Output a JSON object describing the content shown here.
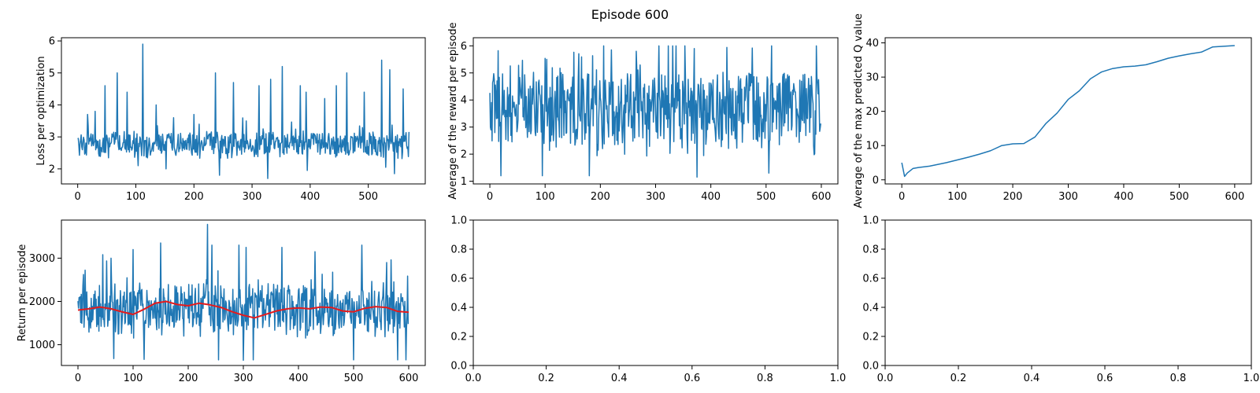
{
  "figure": {
    "title": "Episode 600"
  },
  "colors": {
    "series": "#1f77b4",
    "moving_average": "#e41a1c",
    "axes": "#000000",
    "background": "#ffffff"
  },
  "chart_data": [
    {
      "id": "loss",
      "type": "line",
      "title": "",
      "xlabel": "",
      "ylabel": "Loss per optimization",
      "xlim": [
        -28,
        598
      ],
      "ylim": [
        1.53,
        6.1
      ],
      "xticks": [
        0,
        100,
        200,
        300,
        400,
        500
      ],
      "yticks": [
        2,
        3,
        4,
        5,
        6
      ],
      "grid": false,
      "series": [
        {
          "x_range": [
            0,
            570
          ],
          "color": "#1f77b4",
          "generated": {
            "n": 571,
            "base": 2.75,
            "noise": 0.35,
            "spikes": [
              [
                17,
                3.7
              ],
              [
                30,
                3.8
              ],
              [
                47,
                4.6
              ],
              [
                68,
                5.0
              ],
              [
                85,
                4.4
              ],
              [
                112,
                5.9
              ],
              [
                135,
                4.0
              ],
              [
                165,
                3.6
              ],
              [
                200,
                3.7
              ],
              [
                237,
                5.0
              ],
              [
                268,
                4.7
              ],
              [
                290,
                3.5
              ],
              [
                312,
                4.6
              ],
              [
                332,
                4.8
              ],
              [
                352,
                5.2
              ],
              [
                383,
                4.6
              ],
              [
                393,
                4.4
              ],
              [
                425,
                4.2
              ],
              [
                445,
                4.6
              ],
              [
                463,
                5.0
              ],
              [
                493,
                4.4
              ],
              [
                523,
                5.4
              ],
              [
                537,
                5.1
              ],
              [
                560,
                4.5
              ]
            ],
            "lows": [
              [
                104,
                2.1
              ],
              [
                152,
                2.0
              ],
              [
                244,
                1.8
              ],
              [
                327,
                1.7
              ],
              [
                395,
                1.95
              ],
              [
                530,
                2.05
              ],
              [
                545,
                1.85
              ]
            ],
            "min": 1.7,
            "max": 5.9
          }
        }
      ]
    },
    {
      "id": "avg-reward",
      "type": "line",
      "title": "",
      "xlabel": "",
      "ylabel": "Average of the reward per episode",
      "xlim": [
        -30,
        630
      ],
      "ylim": [
        0.9,
        6.3
      ],
      "xticks": [
        0,
        100,
        200,
        300,
        400,
        500,
        600
      ],
      "yticks": [
        1,
        2,
        3,
        4,
        5,
        6
      ],
      "grid": false,
      "series": [
        {
          "x_range": [
            0,
            599
          ],
          "color": "#1f77b4",
          "generated": {
            "n": 600,
            "base": 3.6,
            "noise": 1.35,
            "spikes": [
              [
                220,
                5.85
              ],
              [
                265,
                5.8
              ],
              [
                370,
                5.9
              ],
              [
                510,
                6.0
              ]
            ],
            "lows": [
              [
                20,
                1.2
              ],
              [
                95,
                1.2
              ],
              [
                180,
                1.2
              ],
              [
                375,
                1.15
              ],
              [
                505,
                1.3
              ]
            ],
            "min": 1.15,
            "max": 6.0
          }
        }
      ]
    },
    {
      "id": "max-q",
      "type": "line",
      "title": "",
      "xlabel": "",
      "ylabel": "Average of the max predicted Q value",
      "xlim": [
        -30,
        630
      ],
      "ylim": [
        -1.2,
        41.5
      ],
      "xticks": [
        0,
        100,
        200,
        300,
        400,
        500,
        600
      ],
      "yticks": [
        0,
        10,
        20,
        30,
        40
      ],
      "grid": false,
      "series": [
        {
          "color": "#1f77b4",
          "x": [
            0,
            5,
            10,
            20,
            30,
            50,
            80,
            100,
            120,
            140,
            160,
            180,
            200,
            220,
            240,
            260,
            280,
            300,
            320,
            340,
            360,
            380,
            400,
            420,
            440,
            460,
            480,
            500,
            520,
            540,
            560,
            580,
            600
          ],
          "y": [
            5.0,
            1.0,
            2.0,
            3.3,
            3.6,
            4.0,
            5.0,
            5.8,
            6.6,
            7.5,
            8.5,
            10.0,
            10.5,
            10.6,
            12.5,
            16.5,
            19.5,
            23.5,
            26.0,
            29.5,
            31.5,
            32.5,
            33.0,
            33.2,
            33.6,
            34.5,
            35.5,
            36.2,
            36.8,
            37.3,
            38.8,
            39.0,
            39.2
          ]
        }
      ]
    },
    {
      "id": "return",
      "type": "line",
      "title": "",
      "xlabel": "",
      "ylabel": "Return per episode",
      "xlim": [
        -30,
        630
      ],
      "ylim": [
        520,
        3880
      ],
      "xticks": [
        0,
        100,
        200,
        300,
        400,
        500,
        600
      ],
      "yticks": [
        1000,
        2000,
        3000
      ],
      "grid": false,
      "series": [
        {
          "x_range": [
            0,
            599
          ],
          "color": "#1f77b4",
          "generated": {
            "n": 600,
            "base": 1800,
            "noise": 520,
            "spikes": [
              [
                60,
                3000
              ],
              [
                100,
                3200
              ],
              [
                150,
                3350
              ],
              [
                235,
                3780
              ],
              [
                243,
                3300
              ],
              [
                292,
                3300
              ],
              [
                305,
                3250
              ],
              [
                370,
                3250
              ],
              [
                430,
                3150
              ],
              [
                515,
                3300
              ],
              [
                560,
                2900
              ]
            ],
            "lows": [
              [
                65,
                680
              ],
              [
                120,
                660
              ],
              [
                255,
                650
              ],
              [
                300,
                640
              ],
              [
                318,
                650
              ],
              [
                500,
                650
              ],
              [
                580,
                650
              ],
              [
                595,
                650
              ]
            ],
            "min": 640,
            "max": 3780
          }
        },
        {
          "color": "#e41a1c",
          "x": [
            0,
            20,
            40,
            60,
            80,
            100,
            120,
            140,
            160,
            180,
            200,
            220,
            240,
            260,
            280,
            300,
            320,
            340,
            360,
            380,
            400,
            420,
            440,
            460,
            480,
            500,
            520,
            540,
            560,
            580,
            600
          ],
          "y": [
            1800,
            1830,
            1870,
            1830,
            1760,
            1700,
            1820,
            1960,
            2000,
            1930,
            1900,
            1960,
            1920,
            1860,
            1760,
            1680,
            1620,
            1700,
            1780,
            1830,
            1850,
            1830,
            1870,
            1860,
            1780,
            1760,
            1840,
            1880,
            1860,
            1770,
            1750
          ]
        }
      ]
    },
    {
      "id": "empty-1",
      "type": "line",
      "title": "",
      "xlabel": "",
      "ylabel": "",
      "xlim": [
        0,
        1
      ],
      "ylim": [
        0,
        1
      ],
      "xticks": [
        "0.0",
        "0.2",
        "0.4",
        "0.6",
        "0.8",
        "1.0"
      ],
      "yticks": [
        "0.0",
        "0.2",
        "0.4",
        "0.6",
        "0.8",
        "1.0"
      ],
      "grid": false,
      "series": []
    },
    {
      "id": "empty-2",
      "type": "line",
      "title": "",
      "xlabel": "",
      "ylabel": "",
      "xlim": [
        0,
        1
      ],
      "ylim": [
        0,
        1
      ],
      "xticks": [
        "0.0",
        "0.2",
        "0.4",
        "0.6",
        "0.8",
        "1.0"
      ],
      "yticks": [
        "0.0",
        "0.2",
        "0.4",
        "0.6",
        "0.8",
        "1.0"
      ],
      "grid": false,
      "series": []
    }
  ]
}
